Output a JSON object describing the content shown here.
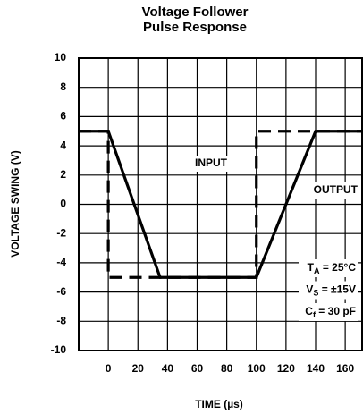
{
  "chart_data": {
    "type": "line",
    "title": [
      "Voltage Follower",
      "Pulse Response"
    ],
    "xlabel": "TIME (µs)",
    "ylabel": "VOLTAGE SWING (V)",
    "xlim": [
      -20,
      172
    ],
    "ylim": [
      -10,
      10
    ],
    "xticks": [
      0,
      20,
      40,
      60,
      80,
      100,
      120,
      140,
      160
    ],
    "yticks": [
      -10,
      -8,
      -6,
      -4,
      -2,
      0,
      2,
      4,
      6,
      8,
      10
    ],
    "grid": true,
    "series": [
      {
        "name": "INPUT",
        "color": "#000000",
        "line_style": "dashed",
        "x": [
          -20,
          0,
          0,
          100,
          100,
          172
        ],
        "values": [
          5,
          5,
          -5,
          -5,
          5,
          5
        ]
      },
      {
        "name": "OUTPUT",
        "color": "#000000",
        "line_style": "solid",
        "x": [
          -20,
          0,
          35,
          100,
          140,
          172
        ],
        "values": [
          5,
          5,
          -5,
          -5,
          5,
          5
        ]
      }
    ],
    "conditions": [
      {
        "symbol": "T",
        "subscript": "A",
        "value": " = 25°C"
      },
      {
        "symbol": "V",
        "subscript": "S",
        "value": " = ±15V"
      },
      {
        "symbol": "C",
        "subscript": "f",
        "value": " = 30 pF"
      }
    ]
  }
}
